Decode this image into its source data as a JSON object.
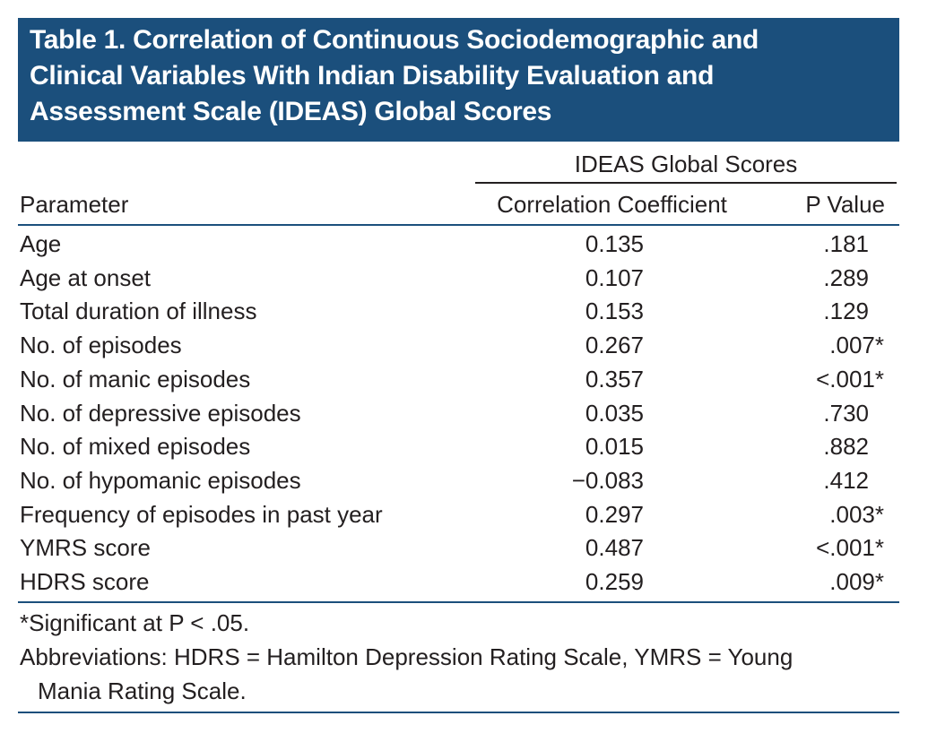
{
  "title": [
    "Table 1. Correlation of Continuous Sociodemographic and",
    "Clinical Variables With Indian Disability Evaluation and",
    "Assessment Scale (IDEAS) Global Scores"
  ],
  "table": {
    "group_header": "IDEAS Global Scores",
    "columns": [
      "Parameter",
      "Correlation Coefficient",
      "P Value"
    ],
    "rows": [
      [
        "Age",
        "0.135",
        ".181"
      ],
      [
        "Age at onset",
        "0.107",
        ".289"
      ],
      [
        "Total duration of illness",
        "0.153",
        ".129"
      ],
      [
        "No. of episodes",
        "0.267",
        ".007*"
      ],
      [
        "No. of manic episodes",
        "0.357",
        "<.001*"
      ],
      [
        "No. of depressive episodes",
        "0.035",
        ".730"
      ],
      [
        "No. of mixed episodes",
        "0.015",
        ".882"
      ],
      [
        "No. of hypomanic episodes",
        "−0.083",
        ".412"
      ],
      [
        "Frequency of episodes in past year",
        "0.297",
        ".003*"
      ],
      [
        "YMRS score",
        "0.487",
        "<.001*"
      ],
      [
        "HDRS score",
        "0.259",
        ".009*"
      ]
    ]
  },
  "footnotes": [
    "*Significant at P < .05.",
    "Abbreviations: HDRS = Hamilton Depression Rating Scale, YMRS = Young",
    "Mania Rating Scale."
  ]
}
